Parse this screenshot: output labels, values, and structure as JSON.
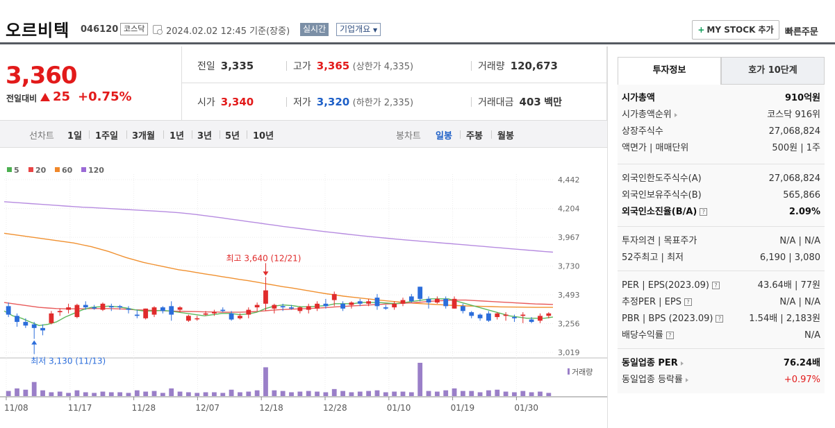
{
  "header": {
    "name": "오르비텍",
    "code": "046120",
    "market": "코스닥",
    "datetime": "2024.02.02 12:45  기준(장중)",
    "realtime": "실시간",
    "company": "기업개요",
    "mystock": "MY STOCK 추가",
    "quick_order": "빠른주문"
  },
  "price": {
    "current": "3,360",
    "diff_label": "전일대비",
    "diff": "25",
    "rate": "+0.75%",
    "prev_label": "전일",
    "prev": "3,335",
    "high_label": "고가",
    "high": "3,365",
    "upper_limit": "(상한가 4,335)",
    "volume_label": "거래량",
    "volume": "120,673",
    "open_label": "시가",
    "open": "3,340",
    "low_label": "저가",
    "low": "3,320",
    "lower_limit": "(하한가 2,335)",
    "amount_label": "거래대금",
    "amount": "403",
    "amount_unit": "백만"
  },
  "period": {
    "line_label": "선차트",
    "line_items": [
      "1일",
      "1주일",
      "3개월",
      "1년",
      "3년",
      "5년",
      "10년"
    ],
    "candle_label": "봉차트",
    "candle_items": [
      "일봉",
      "주봉",
      "월봉"
    ],
    "active_candle": "일봉"
  },
  "chart_data": {
    "type": "candlestick",
    "legend": [
      {
        "name": "5",
        "color": "#4caf50"
      },
      {
        "name": "20",
        "color": "#e84545"
      },
      {
        "name": "60",
        "color": "#f0882a"
      },
      {
        "name": "120",
        "color": "#9b6ad6"
      }
    ],
    "y_ticks": [
      4442,
      4204,
      3967,
      3730,
      3493,
      3256,
      3019
    ],
    "ylim": [
      3019,
      4442
    ],
    "x_ticks": [
      "11/08",
      "11/17",
      "11/28",
      "12/07",
      "12/18",
      "12/28",
      "01/10",
      "01/19",
      "01/30"
    ],
    "volume_label": "거래량",
    "high_annotation": "최고 3,640 (12/21)",
    "low_annotation": "최저 3,130 (11/13)",
    "high_index": 30,
    "low_index": 3,
    "candles": [
      {
        "o": 3400,
        "h": 3430,
        "l": 3310,
        "c": 3330
      },
      {
        "o": 3320,
        "h": 3340,
        "l": 3230,
        "c": 3270
      },
      {
        "o": 3270,
        "h": 3300,
        "l": 3220,
        "c": 3240
      },
      {
        "o": 3250,
        "h": 3270,
        "l": 3130,
        "c": 3220
      },
      {
        "o": 3220,
        "h": 3250,
        "l": 3160,
        "c": 3200
      },
      {
        "o": 3260,
        "h": 3360,
        "l": 3250,
        "c": 3340
      },
      {
        "o": 3350,
        "h": 3380,
        "l": 3320,
        "c": 3360
      },
      {
        "o": 3370,
        "h": 3420,
        "l": 3340,
        "c": 3390
      },
      {
        "o": 3310,
        "h": 3420,
        "l": 3300,
        "c": 3410
      },
      {
        "o": 3410,
        "h": 3440,
        "l": 3370,
        "c": 3390
      },
      {
        "o": 3390,
        "h": 3410,
        "l": 3370,
        "c": 3380
      },
      {
        "o": 3370,
        "h": 3430,
        "l": 3360,
        "c": 3420
      },
      {
        "o": 3400,
        "h": 3420,
        "l": 3360,
        "c": 3390
      },
      {
        "o": 3400,
        "h": 3410,
        "l": 3370,
        "c": 3390
      },
      {
        "o": 3380,
        "h": 3400,
        "l": 3340,
        "c": 3370
      },
      {
        "o": 3330,
        "h": 3370,
        "l": 3300,
        "c": 3320
      },
      {
        "o": 3300,
        "h": 3380,
        "l": 3290,
        "c": 3380
      },
      {
        "o": 3330,
        "h": 3400,
        "l": 3310,
        "c": 3390
      },
      {
        "o": 3390,
        "h": 3400,
        "l": 3340,
        "c": 3360
      },
      {
        "o": 3400,
        "h": 3440,
        "l": 3280,
        "c": 3330
      },
      {
        "o": 3370,
        "h": 3400,
        "l": 3350,
        "c": 3390
      },
      {
        "o": 3280,
        "h": 3330,
        "l": 3270,
        "c": 3320
      },
      {
        "o": 3300,
        "h": 3320,
        "l": 3280,
        "c": 3300
      },
      {
        "o": 3330,
        "h": 3360,
        "l": 3320,
        "c": 3340
      },
      {
        "o": 3340,
        "h": 3370,
        "l": 3320,
        "c": 3350
      },
      {
        "o": 3370,
        "h": 3390,
        "l": 3350,
        "c": 3360
      },
      {
        "o": 3340,
        "h": 3360,
        "l": 3280,
        "c": 3290
      },
      {
        "o": 3300,
        "h": 3340,
        "l": 3290,
        "c": 3320
      },
      {
        "o": 3330,
        "h": 3390,
        "l": 3300,
        "c": 3370
      },
      {
        "o": 3390,
        "h": 3430,
        "l": 3360,
        "c": 3410
      },
      {
        "o": 3420,
        "h": 3640,
        "l": 3360,
        "c": 3530
      },
      {
        "o": 3380,
        "h": 3420,
        "l": 3340,
        "c": 3410
      },
      {
        "o": 3400,
        "h": 3420,
        "l": 3360,
        "c": 3390
      },
      {
        "o": 3390,
        "h": 3410,
        "l": 3370,
        "c": 3380
      },
      {
        "o": 3360,
        "h": 3400,
        "l": 3340,
        "c": 3390
      },
      {
        "o": 3370,
        "h": 3420,
        "l": 3340,
        "c": 3400
      },
      {
        "o": 3380,
        "h": 3440,
        "l": 3360,
        "c": 3420
      },
      {
        "o": 3420,
        "h": 3460,
        "l": 3380,
        "c": 3400
      },
      {
        "o": 3450,
        "h": 3520,
        "l": 3400,
        "c": 3500
      },
      {
        "o": 3420,
        "h": 3440,
        "l": 3360,
        "c": 3380
      },
      {
        "o": 3410,
        "h": 3440,
        "l": 3380,
        "c": 3430
      },
      {
        "o": 3440,
        "h": 3460,
        "l": 3400,
        "c": 3420
      },
      {
        "o": 3420,
        "h": 3460,
        "l": 3400,
        "c": 3440
      },
      {
        "o": 3470,
        "h": 3500,
        "l": 3370,
        "c": 3400
      },
      {
        "o": 3390,
        "h": 3410,
        "l": 3370,
        "c": 3380
      },
      {
        "o": 3390,
        "h": 3440,
        "l": 3370,
        "c": 3420
      },
      {
        "o": 3420,
        "h": 3470,
        "l": 3400,
        "c": 3450
      },
      {
        "o": 3480,
        "h": 3500,
        "l": 3430,
        "c": 3440
      },
      {
        "o": 3560,
        "h": 3560,
        "l": 3440,
        "c": 3460
      },
      {
        "o": 3460,
        "h": 3480,
        "l": 3380,
        "c": 3430
      },
      {
        "o": 3430,
        "h": 3480,
        "l": 3420,
        "c": 3460
      },
      {
        "o": 3460,
        "h": 3480,
        "l": 3380,
        "c": 3400
      },
      {
        "o": 3380,
        "h": 3480,
        "l": 3380,
        "c": 3460
      },
      {
        "o": 3400,
        "h": 3420,
        "l": 3340,
        "c": 3360
      },
      {
        "o": 3350,
        "h": 3360,
        "l": 3300,
        "c": 3320
      },
      {
        "o": 3330,
        "h": 3340,
        "l": 3280,
        "c": 3300
      },
      {
        "o": 3340,
        "h": 3360,
        "l": 3270,
        "c": 3280
      },
      {
        "o": 3310,
        "h": 3350,
        "l": 3290,
        "c": 3340
      },
      {
        "o": 3320,
        "h": 3350,
        "l": 3280,
        "c": 3330
      },
      {
        "o": 3310,
        "h": 3330,
        "l": 3270,
        "c": 3300
      },
      {
        "o": 3320,
        "h": 3350,
        "l": 3260,
        "c": 3330
      },
      {
        "o": 3290,
        "h": 3310,
        "l": 3260,
        "c": 3270
      },
      {
        "o": 3280,
        "h": 3340,
        "l": 3260,
        "c": 3320
      },
      {
        "o": 3320,
        "h": 3350,
        "l": 3300,
        "c": 3340
      }
    ],
    "volumes": [
      8,
      12,
      10,
      22,
      9,
      6,
      7,
      5,
      9,
      6,
      5,
      7,
      6,
      6,
      5,
      9,
      7,
      8,
      5,
      12,
      7,
      6,
      5,
      6,
      6,
      5,
      10,
      6,
      7,
      9,
      45,
      9,
      8,
      6,
      7,
      8,
      7,
      6,
      11,
      8,
      6,
      7,
      8,
      9,
      6,
      7,
      7,
      6,
      52,
      8,
      7,
      9,
      12,
      8,
      8,
      6,
      9,
      10,
      7,
      6,
      8,
      6,
      7,
      5
    ],
    "ma5": [
      3360,
      3320,
      3300,
      3270,
      3240,
      3250,
      3270,
      3310,
      3340,
      3370,
      3390,
      3395,
      3400,
      3395,
      3385,
      3370,
      3360,
      3360,
      3365,
      3360,
      3350,
      3340,
      3330,
      3320,
      3330,
      3340,
      3340,
      3330,
      3335,
      3350,
      3380,
      3400,
      3410,
      3405,
      3395,
      3395,
      3400,
      3405,
      3420,
      3420,
      3420,
      3430,
      3430,
      3430,
      3425,
      3420,
      3430,
      3440,
      3450,
      3460,
      3460,
      3460,
      3440,
      3420,
      3400,
      3380,
      3360,
      3340,
      3320,
      3310,
      3300,
      3300,
      3300,
      3310
    ],
    "ma20": [
      3430,
      3420,
      3410,
      3400,
      3390,
      3385,
      3380,
      3378,
      3378,
      3378,
      3380,
      3380,
      3380,
      3378,
      3375,
      3370,
      3368,
      3365,
      3363,
      3360,
      3358,
      3356,
      3355,
      3353,
      3352,
      3350,
      3350,
      3350,
      3352,
      3356,
      3362,
      3368,
      3372,
      3375,
      3378,
      3380,
      3384,
      3388,
      3394,
      3398,
      3402,
      3406,
      3410,
      3414,
      3418,
      3420,
      3424,
      3428,
      3434,
      3440,
      3444,
      3448,
      3450,
      3450,
      3446,
      3442,
      3438,
      3434,
      3430,
      3426,
      3422,
      3418,
      3416,
      3414
    ],
    "ma60": [
      4000,
      3990,
      3980,
      3970,
      3960,
      3950,
      3940,
      3930,
      3920,
      3905,
      3890,
      3870,
      3850,
      3825,
      3800,
      3780,
      3760,
      3745,
      3730,
      3715,
      3700,
      3690,
      3678,
      3666,
      3655,
      3643,
      3632,
      3620,
      3610,
      3598,
      3585,
      3573,
      3560,
      3550,
      3538,
      3526,
      3514,
      3502,
      3492,
      3482,
      3474,
      3466,
      3458,
      3450,
      3443,
      3436,
      3430,
      3425,
      3420,
      3416,
      3412,
      3408,
      3405,
      3402,
      3400,
      3398,
      3396,
      3394,
      3393,
      3392,
      3391,
      3390,
      3390,
      3390
    ],
    "ma120": [
      4260,
      4255,
      4250,
      4245,
      4240,
      4235,
      4230,
      4225,
      4220,
      4215,
      4212,
      4208,
      4204,
      4200,
      4196,
      4192,
      4188,
      4184,
      4180,
      4175,
      4170,
      4163,
      4155,
      4146,
      4137,
      4127,
      4117,
      4107,
      4097,
      4087,
      4077,
      4067,
      4057,
      4048,
      4039,
      4030,
      4021,
      4012,
      4004,
      3996,
      3988,
      3980,
      3973,
      3966,
      3959,
      3952,
      3946,
      3940,
      3934,
      3928,
      3922,
      3916,
      3910,
      3904,
      3898,
      3892,
      3886,
      3880,
      3874,
      3868,
      3862,
      3856,
      3850,
      3845
    ]
  },
  "invest": {
    "tab_invest": "투자정보",
    "tab_quote": "호가 10단계",
    "g1": [
      {
        "k": "시가총액",
        "v": "910억원",
        "bold": true
      },
      {
        "k": "시가총액순위",
        "v": "코스닥 916위",
        "arrow": true
      },
      {
        "k": "상장주식수",
        "v": "27,068,824"
      },
      {
        "k": "액면가 | 매매단위",
        "v": "500원 | 1주"
      }
    ],
    "g2": [
      {
        "k": "외국인한도주식수(A)",
        "v": "27,068,824"
      },
      {
        "k": "외국인보유주식수(B)",
        "v": "565,866"
      },
      {
        "k": "외국인소진율(B/A)",
        "v": "2.09%",
        "bold": true,
        "help": true
      }
    ],
    "g3": [
      {
        "k": "투자의견 | 목표주가",
        "v": "N/A | N/A"
      },
      {
        "k": "52주최고 | 최저",
        "v": "6,190 | 3,080"
      }
    ],
    "g4": [
      {
        "k": "PER | EPS(2023.09)",
        "v": "43.64배 | 77원",
        "help": true
      },
      {
        "k": "추정PER | EPS",
        "v": "N/A | N/A",
        "help": true
      },
      {
        "k": "PBR | BPS (2023.09)",
        "v": "1.54배 | 2,183원",
        "help": true
      },
      {
        "k": "배당수익률",
        "v": "N/A",
        "help": true
      }
    ],
    "g5": [
      {
        "k": "동일업종 PER",
        "v": "76.24배",
        "bold": true,
        "arrow": true
      },
      {
        "k": "동일업종 등락률",
        "v": "+0.97%",
        "arrow": true,
        "red": true
      }
    ]
  }
}
